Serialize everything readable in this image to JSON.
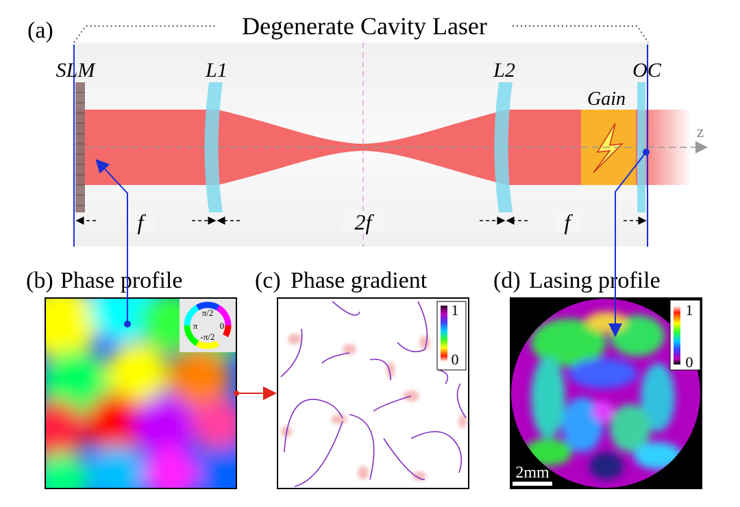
{
  "panel_a": {
    "tag": "(a)",
    "title": "Degenerate Cavity Laser",
    "labels": {
      "slm": "SLM",
      "l1": "L1",
      "l2": "L2",
      "oc": "OC",
      "gain": "Gain",
      "axis": "z"
    },
    "distances": {
      "left": "f",
      "middle": "2f",
      "right": "f"
    }
  },
  "panel_b": {
    "tag": "(b)",
    "title": "Phase profile",
    "colorwheel": {
      "top": "π/2",
      "left": "π",
      "right": "0",
      "bottom": "-π/2"
    }
  },
  "panel_c": {
    "tag": "(c)",
    "title": "Phase gradient",
    "colorbar": {
      "max": "1",
      "min": "0"
    }
  },
  "panel_d": {
    "tag": "(d)",
    "title": "Lasing profile",
    "colorbar": {
      "max": "1",
      "min": "0"
    },
    "scalebar": "2mm"
  },
  "colors": {
    "beam": "#f46a6a",
    "lens": "#7fd9f0",
    "gain": "#f8b22c",
    "pointer": "#1a2fd6",
    "arrow": "#e0261c"
  }
}
